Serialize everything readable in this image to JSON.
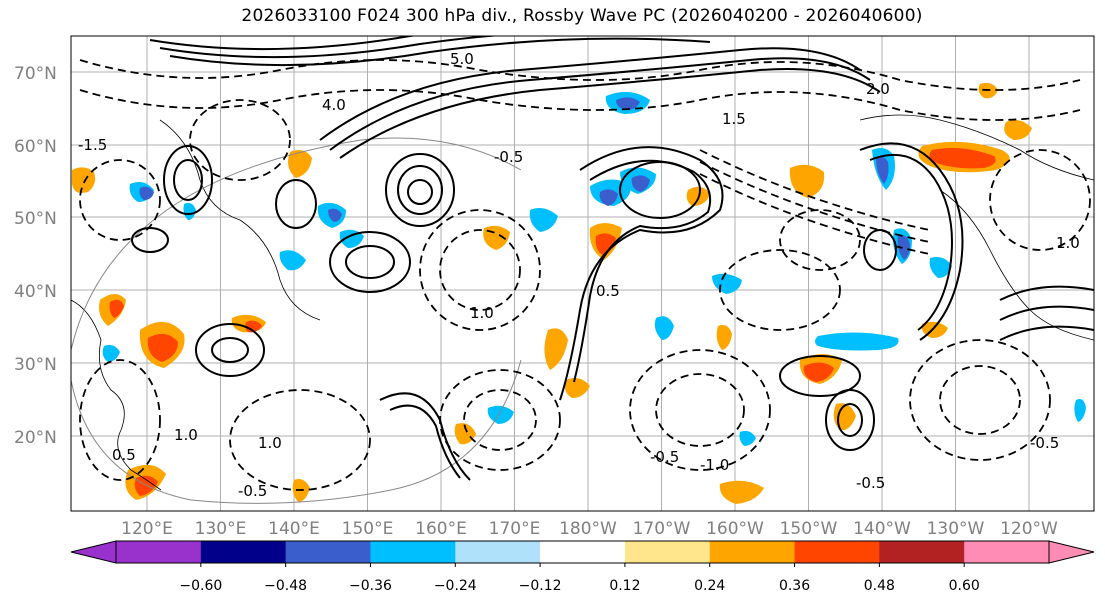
{
  "title": "2026033100 F024 300 hPa div., Rossby Wave PC (2026040200 - 2026040600)",
  "map": {
    "lat_labels": [
      "70°N",
      "60°N",
      "50°N",
      "40°N",
      "30°N",
      "20°N"
    ],
    "lon_labels": [
      "120°E",
      "130°E",
      "140°E",
      "150°E",
      "160°E",
      "170°E",
      "180°W",
      "170°W",
      "160°W",
      "150°W",
      "140°W",
      "130°W",
      "120°W"
    ],
    "contour_labels": [
      "5.0",
      "4.0",
      "2.0",
      "1.5",
      "-0.5",
      "1.0",
      "-1.0",
      "0.5",
      "-1.5",
      "-0.5",
      "1.0",
      "0.5",
      "-0.5",
      "-0.5",
      "1.0",
      "-0.5",
      "1.0"
    ]
  },
  "colorbar": {
    "tick_labels": [
      "−0.60",
      "−0.48",
      "−0.36",
      "−0.24",
      "−0.12",
      "0.12",
      "0.24",
      "0.36",
      "0.48",
      "0.60"
    ],
    "colors": [
      "#9932cc",
      "#00008b",
      "#3a5fcd",
      "#00bfff",
      "#afe1fa",
      "#ffffff",
      "#ffe68c",
      "#ffa500",
      "#ff4500",
      "#b22222",
      "#ff8cb4"
    ]
  }
}
